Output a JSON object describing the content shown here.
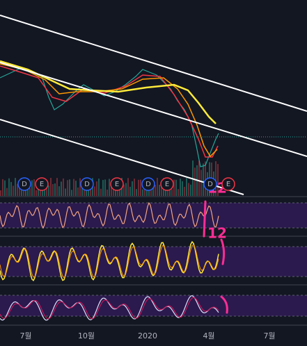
{
  "x_axis": {
    "labels": [
      "7월",
      "10월",
      "2020",
      "4월",
      "7월"
    ]
  },
  "events": [
    "D",
    "E",
    "D",
    "E",
    "D",
    "E",
    "D",
    "E"
  ],
  "annotations": [
    "12",
    "12"
  ]
}
